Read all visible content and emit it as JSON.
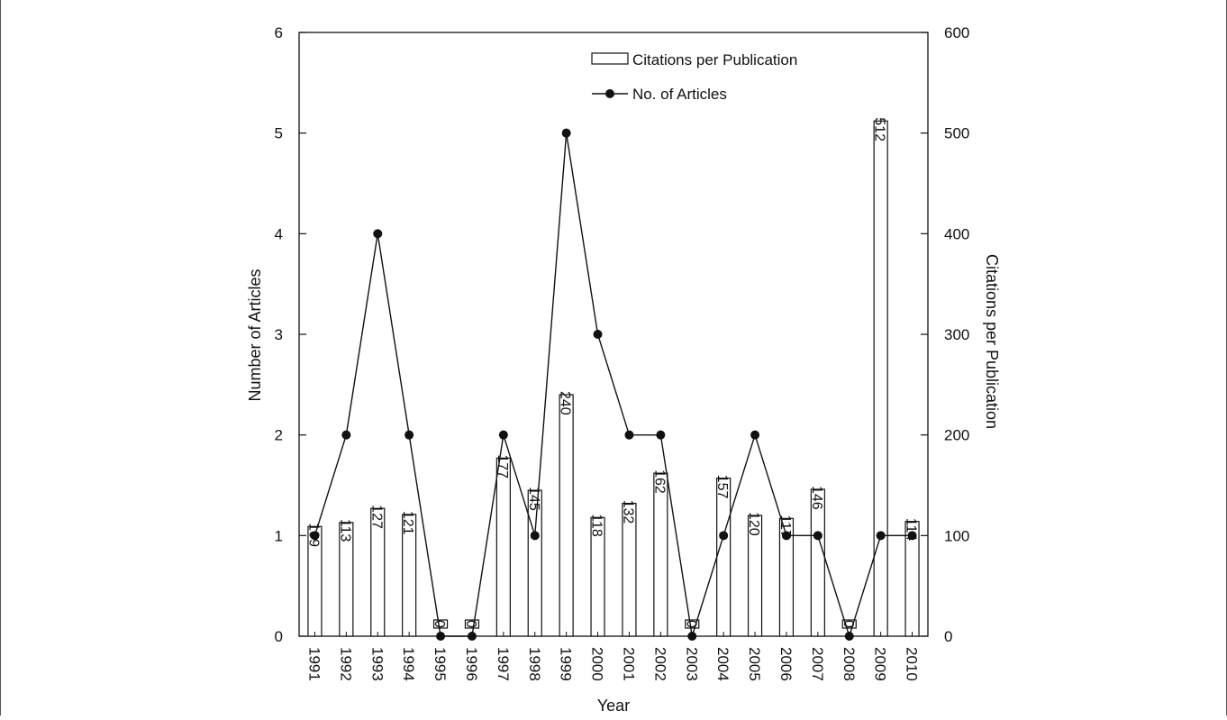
{
  "chart_data": {
    "type": "bar",
    "title": "",
    "xlabel": "Year",
    "ylabel_left": "Number of Articles",
    "ylabel_right": "Citations per Publication",
    "ylim_left": [
      0,
      6
    ],
    "ylim_right": [
      0,
      600
    ],
    "yticks_left": [
      "0",
      "1",
      "2",
      "3",
      "4",
      "5",
      "6"
    ],
    "yticks_right": [
      "0",
      "100",
      "200",
      "300",
      "400",
      "500",
      "600"
    ],
    "grid": false,
    "legend_position": "top-right",
    "categories": [
      "1991",
      "1992",
      "1993",
      "1994",
      "1995",
      "1996",
      "1997",
      "1998",
      "1999",
      "2000",
      "2001",
      "2002",
      "2003",
      "2004",
      "2005",
      "2006",
      "2007",
      "2008",
      "2009",
      "2010"
    ],
    "series": [
      {
        "name": "Citations per Publication",
        "type": "bar",
        "axis": "right",
        "values": [
          109,
          113,
          127,
          121,
          0,
          0,
          177,
          145,
          240,
          118,
          132,
          162,
          0,
          157,
          120,
          117,
          146,
          0,
          512,
          114
        ],
        "labels": [
          "109",
          "113",
          "127",
          "121",
          "0",
          "0",
          "177",
          "145",
          "240",
          "118",
          "132",
          "162",
          "0",
          "157",
          "120",
          "117",
          "146",
          "0",
          "512",
          "114"
        ],
        "color": "#ffffff",
        "stroke": "#111111"
      },
      {
        "name": "No. of Articles",
        "type": "line",
        "axis": "left",
        "values": [
          1,
          2,
          4,
          2,
          0,
          0,
          2,
          1,
          5,
          3,
          2,
          2,
          0,
          1,
          2,
          1,
          1,
          0,
          1,
          1
        ],
        "color": "#111111"
      }
    ]
  }
}
